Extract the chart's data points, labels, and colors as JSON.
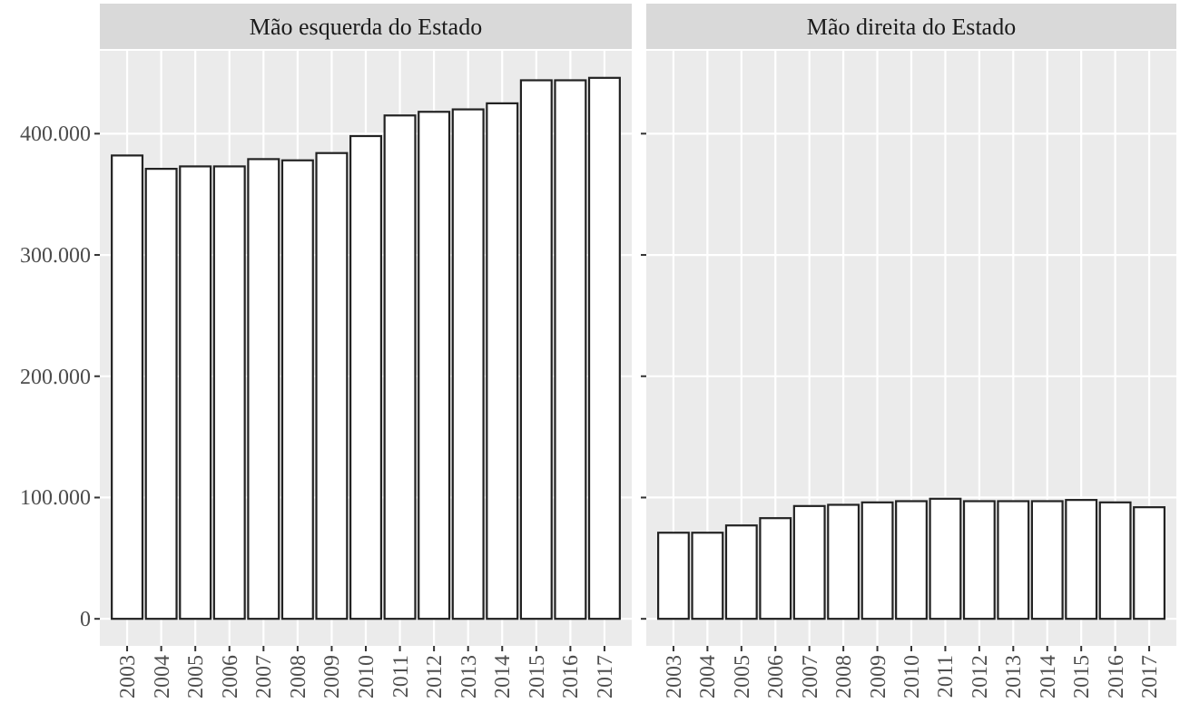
{
  "chart_data": [
    {
      "type": "bar",
      "title": "Mão esquerda do Estado",
      "categories": [
        "2003",
        "2004",
        "2005",
        "2006",
        "2007",
        "2008",
        "2009",
        "2010",
        "2011",
        "2012",
        "2013",
        "2014",
        "2015",
        "2016",
        "2017"
      ],
      "values": [
        382000,
        371000,
        373000,
        373000,
        379000,
        378000,
        384000,
        398000,
        415000,
        418000,
        420000,
        425000,
        444000,
        444000,
        446000
      ],
      "color": "#ffffff",
      "ylim": [
        -22300,
        468300
      ],
      "yticks": [
        {
          "value": 0,
          "label": "0"
        },
        {
          "value": 100000,
          "label": "100.000"
        },
        {
          "value": 200000,
          "label": "200.000"
        },
        {
          "value": 300000,
          "label": "300.000"
        },
        {
          "value": 400000,
          "label": "400.000"
        }
      ],
      "grid": true
    },
    {
      "type": "bar",
      "title": "Mão direita do Estado",
      "categories": [
        "2003",
        "2004",
        "2005",
        "2006",
        "2007",
        "2008",
        "2009",
        "2010",
        "2011",
        "2012",
        "2013",
        "2014",
        "2015",
        "2016",
        "2017"
      ],
      "values": [
        71000,
        71000,
        77000,
        83000,
        93000,
        94000,
        96000,
        97000,
        99000,
        97000,
        97000,
        97000,
        98000,
        96000,
        92000
      ],
      "color": "#ffffff",
      "ylim": [
        -22300,
        468300
      ],
      "yticks": [
        {
          "value": 0,
          "label": null
        },
        {
          "value": 100000,
          "label": null
        },
        {
          "value": 200000,
          "label": null
        },
        {
          "value": 300000,
          "label": null
        },
        {
          "value": 400000,
          "label": null
        }
      ],
      "grid": true,
      "tick_labels": "x"
    }
  ]
}
